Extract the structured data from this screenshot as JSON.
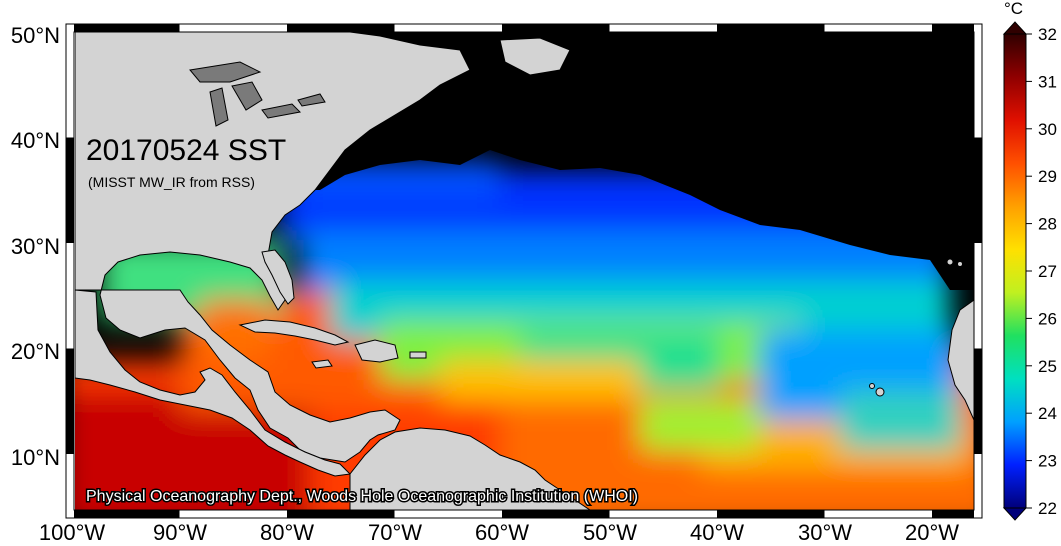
{
  "map": {
    "title": "20170524 SST",
    "subtitle": "(MISST MW_IR from RSS)",
    "credit": "Physical Oceanography Dept., Woods Hole Oceanographic Institution (WHOI)",
    "lat_ticks": [
      "50°N",
      "40°N",
      "30°N",
      "20°N",
      "10°N"
    ],
    "lon_ticks": [
      "100°W",
      "90°W",
      "80°W",
      "70°W",
      "60°W",
      "50°W",
      "40°W",
      "30°W",
      "20°W"
    ],
    "colors": {
      "land": "#d3d3d3",
      "lake": "#7a7a7a",
      "no_data": "#000000",
      "frame": "#000000"
    }
  },
  "colorbar": {
    "unit": "°C",
    "ticks": [
      "32",
      "31",
      "30",
      "29",
      "28",
      "27",
      "26",
      "25",
      "24",
      "23",
      "22"
    ],
    "min": 22,
    "max": 32,
    "stops": [
      "#00007a",
      "#0020ff",
      "#00a0ff",
      "#00e0c0",
      "#20e060",
      "#c0f020",
      "#ffe000",
      "#ffa000",
      "#ff5000",
      "#e01000",
      "#900000",
      "#300000"
    ]
  }
}
